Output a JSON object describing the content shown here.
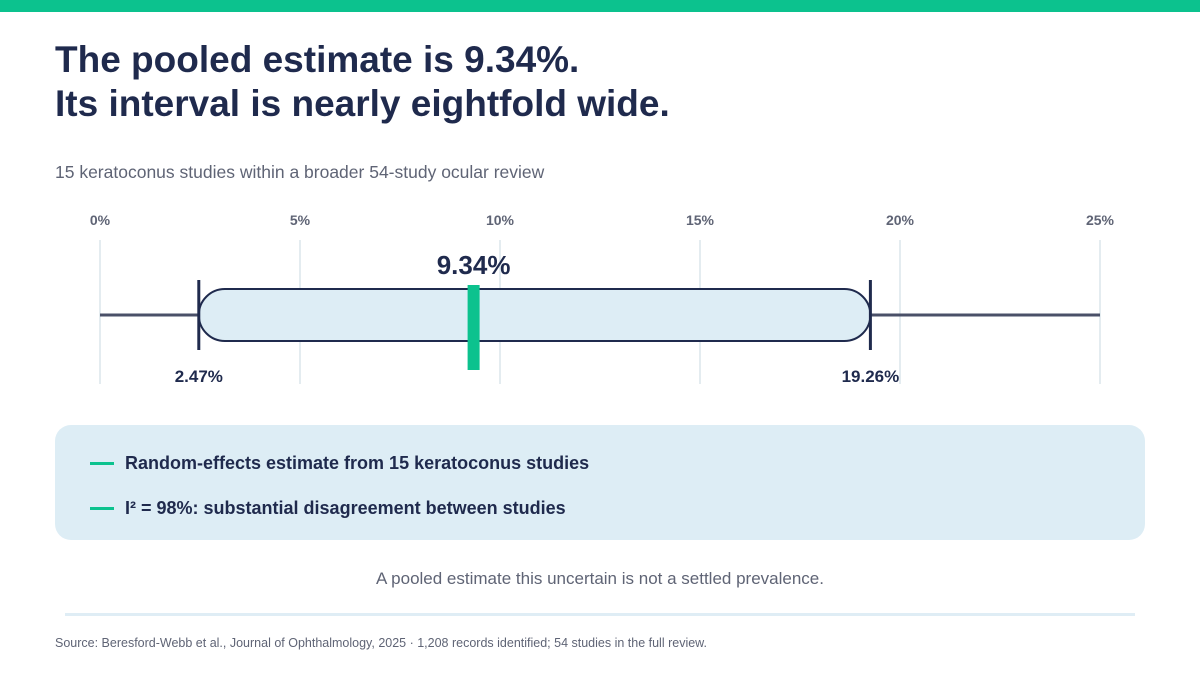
{
  "headline": {
    "line1": "The pooled estimate is 9.34%.",
    "line2": "Its interval is nearly eightfold wide."
  },
  "subtitle": "15 keratoconus studies within a broader 54-study ocular review",
  "chart_data": {
    "type": "interval",
    "axis": {
      "min": 0,
      "max": 25,
      "ticks": [
        0,
        5,
        10,
        15,
        20,
        25
      ],
      "tick_labels": [
        "0%",
        "5%",
        "10%",
        "15%",
        "20%",
        "25%"
      ],
      "grid": true
    },
    "estimate": {
      "value": 9.34,
      "label": "9.34%"
    },
    "ci_low": {
      "value": 2.47,
      "label": "2.47%"
    },
    "ci_high": {
      "value": 19.26,
      "label": "19.26%"
    }
  },
  "legend": {
    "items": [
      {
        "text": "Random-effects estimate from 15 keratoconus studies"
      },
      {
        "text": "I² = 98%: substantial disagreement between studies"
      }
    ]
  },
  "takeaway": "A pooled estimate this uncertain is not a settled prevalence.",
  "source": "Source: Beresford-Webb et al., Journal of Ophthalmology, 2025 · 1,208 records identified; 54 studies in the full review.",
  "colors": {
    "accent": "#0cc28e",
    "navy": "#1f2a4d",
    "band_fill": "#ddedf5",
    "grid": "#dbe6ec",
    "muted": "#5f6475"
  }
}
